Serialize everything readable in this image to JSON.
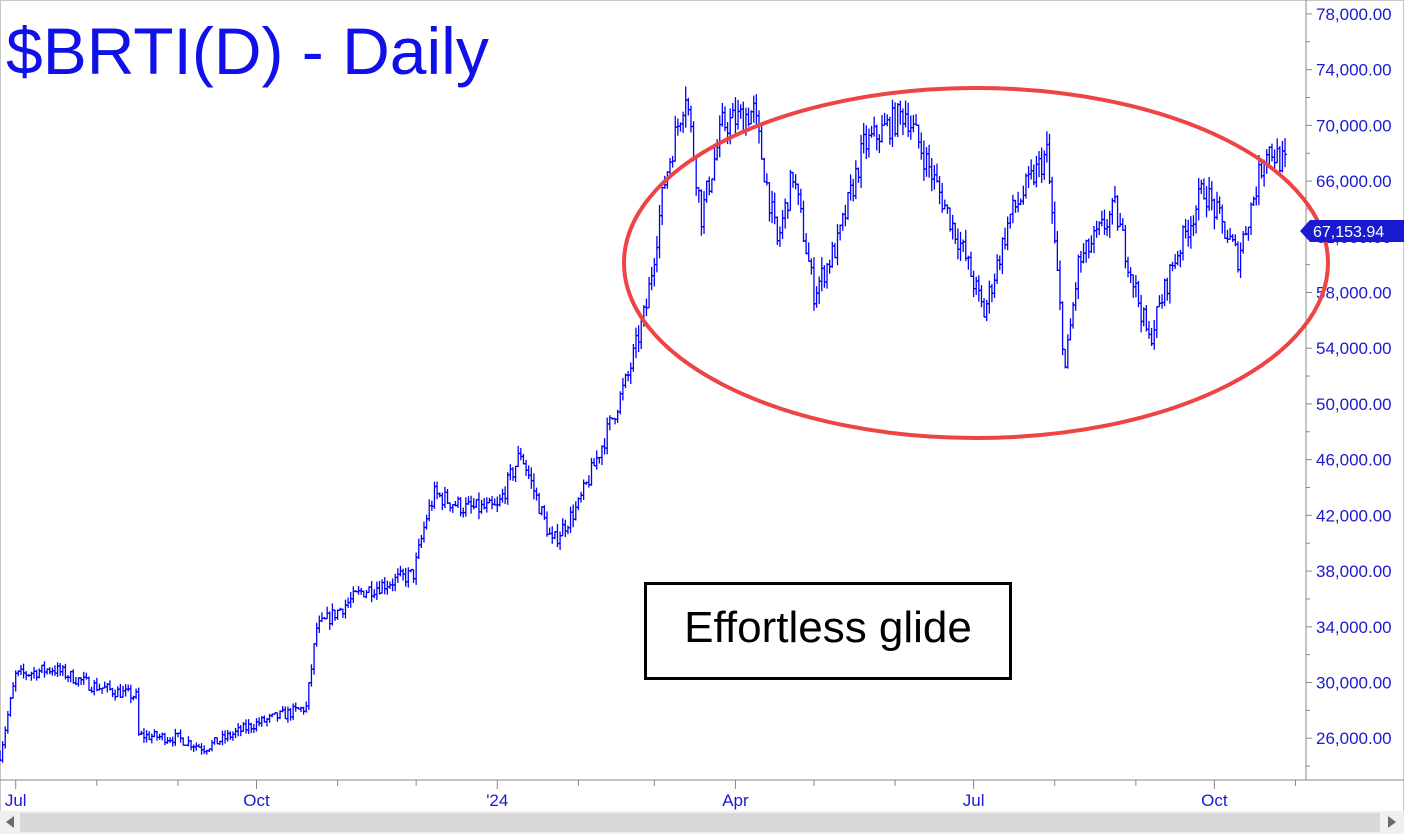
{
  "chart_data": {
    "type": "ohlc-bar",
    "title": "$BRTI(D) - Daily",
    "y_axis": {
      "position": "right",
      "range": [
        23000,
        79000
      ],
      "ticks": [
        26000,
        30000,
        34000,
        38000,
        42000,
        46000,
        50000,
        54000,
        58000,
        62000,
        66000,
        70000,
        74000,
        78000
      ],
      "tick_labels": [
        "26,000.00",
        "30,000.00",
        "34,000.00",
        "38,000.00",
        "42,000.00",
        "46,000.00",
        "50,000.00",
        "54,000.00",
        "58,000.00",
        "62,000.00",
        "66,000.00",
        "70,000.00",
        "74,000.00",
        "78,000.00"
      ]
    },
    "x_axis": {
      "range": [
        "2023-06-25",
        "2024-11-05"
      ],
      "labels": [
        {
          "date": "2023-07-01",
          "text": "Jul"
        },
        {
          "date": "2023-10-01",
          "text": "Oct"
        },
        {
          "date": "2024-01-01",
          "text": "'24"
        },
        {
          "date": "2024-04-01",
          "text": "Apr"
        },
        {
          "date": "2024-07-01",
          "text": "Jul"
        },
        {
          "date": "2024-10-01",
          "text": "Oct"
        }
      ],
      "minor_ticks": [
        "2023-08-01",
        "2023-09-01",
        "2023-11-01",
        "2023-12-01",
        "2024-02-01",
        "2024-03-01",
        "2024-05-01",
        "2024-06-01",
        "2024-08-01",
        "2024-09-01",
        "2024-11-01"
      ]
    },
    "series": [
      {
        "color": "#0000ff",
        "keypoints": [
          [
            "2023-06-25",
            24800
          ],
          [
            "2023-07-01",
            30500
          ],
          [
            "2023-07-15",
            31000
          ],
          [
            "2023-07-30",
            29800
          ],
          [
            "2023-08-16",
            29000
          ],
          [
            "2023-08-17",
            26200
          ],
          [
            "2023-09-01",
            26000
          ],
          [
            "2023-09-11",
            25300
          ],
          [
            "2023-09-30",
            27000
          ],
          [
            "2023-10-20",
            28200
          ],
          [
            "2023-10-24",
            33900
          ],
          [
            "2023-11-10",
            36500
          ],
          [
            "2023-11-30",
            37800
          ],
          [
            "2023-12-05",
            41900
          ],
          [
            "2023-12-08",
            43500
          ],
          [
            "2023-12-20",
            42500
          ],
          [
            "2024-01-01",
            42500
          ],
          [
            "2024-01-10",
            46500
          ],
          [
            "2024-01-22",
            40000
          ],
          [
            "2024-02-01",
            42700
          ],
          [
            "2024-02-12",
            48000
          ],
          [
            "2024-02-20",
            52000
          ],
          [
            "2024-02-27",
            57000
          ],
          [
            "2024-03-05",
            66000
          ],
          [
            "2024-03-13",
            72500
          ],
          [
            "2024-03-19",
            63500
          ],
          [
            "2024-03-27",
            70000
          ],
          [
            "2024-04-08",
            71000
          ],
          [
            "2024-04-17",
            61500
          ],
          [
            "2024-04-23",
            66500
          ],
          [
            "2024-05-01",
            58000
          ],
          [
            "2024-05-10",
            61500
          ],
          [
            "2024-05-20",
            68500
          ],
          [
            "2024-06-05",
            71000
          ],
          [
            "2024-06-15",
            66500
          ],
          [
            "2024-06-27",
            61000
          ],
          [
            "2024-07-05",
            56500
          ],
          [
            "2024-07-15",
            63500
          ],
          [
            "2024-07-29",
            68000
          ],
          [
            "2024-08-05",
            52500
          ],
          [
            "2024-08-10",
            60000
          ],
          [
            "2024-08-24",
            64000
          ],
          [
            "2024-09-06",
            54500
          ],
          [
            "2024-09-15",
            60000
          ],
          [
            "2024-09-27",
            65500
          ],
          [
            "2024-10-10",
            60500
          ],
          [
            "2024-10-21",
            68500
          ],
          [
            "2024-10-28",
            67153.94
          ]
        ]
      }
    ],
    "last_value": 67153.94,
    "last_value_label": "67,153.94",
    "annotations": [
      {
        "type": "text-box",
        "text": "Effortless glide"
      },
      {
        "type": "ellipse",
        "color": "#ef4444",
        "around": [
          "2024-02-24",
          "2024-11-08"
        ],
        "y_range": [
          49500,
          78500
        ]
      }
    ],
    "grid": false,
    "legend": "none"
  }
}
